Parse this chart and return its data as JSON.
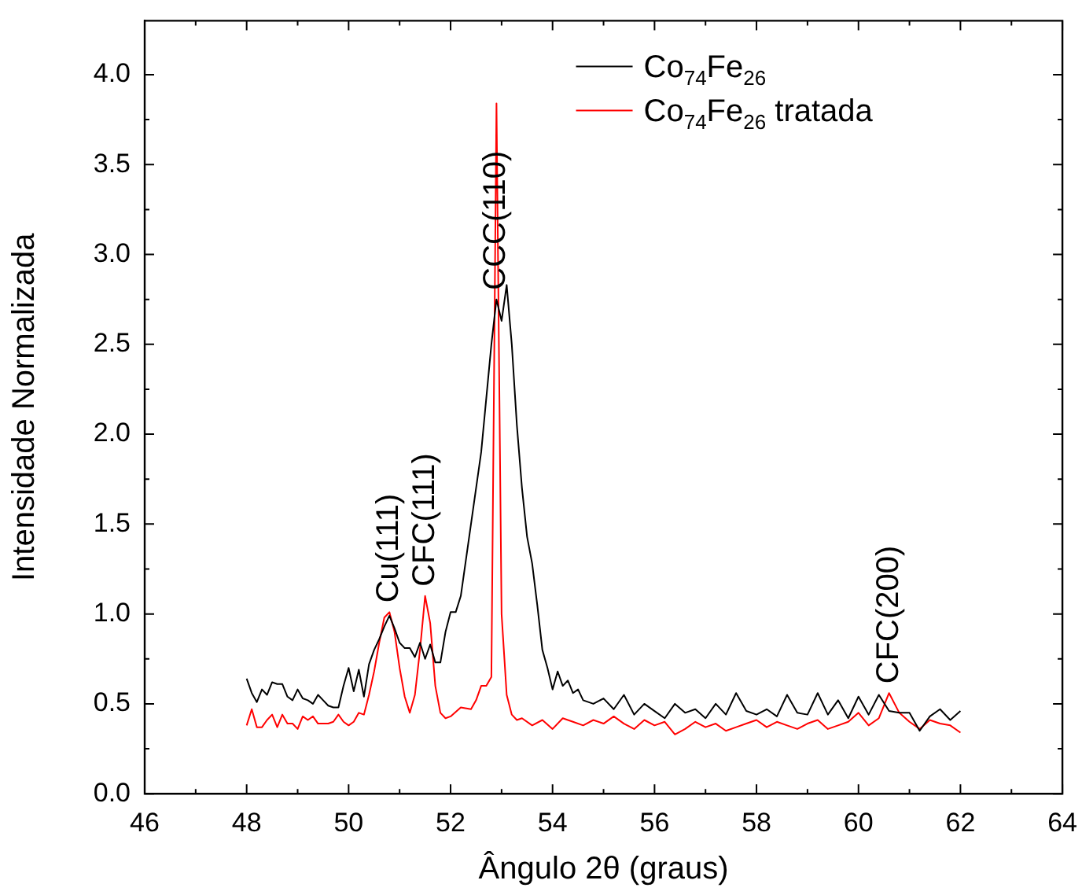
{
  "chart_data": {
    "type": "line",
    "xlabel": "Ângulo 2θ (graus)",
    "ylabel": "Intensidade Normalizada",
    "xlim": [
      46,
      64
    ],
    "xticks": [
      46,
      48,
      50,
      52,
      54,
      56,
      58,
      60,
      62,
      64
    ],
    "ylim": [
      0,
      4.3
    ],
    "yticks": [
      {
        "value": 0,
        "label": "0.0"
      },
      {
        "value": 0.5,
        "label": "0.5"
      },
      {
        "value": 1,
        "label": "1.0"
      },
      {
        "value": 1.5,
        "label": "1.5"
      },
      {
        "value": 2,
        "label": "2.0"
      },
      {
        "value": 2.5,
        "label": "2.5"
      },
      {
        "value": 3,
        "label": "3.0"
      },
      {
        "value": 3.5,
        "label": "3.5"
      },
      {
        "value": 4,
        "label": "4.0"
      }
    ],
    "grid": false,
    "legend": "top right",
    "marker": "none",
    "line_style": "solid",
    "series": [
      {
        "name": "Co$_{74}$Fe$_{26}$",
        "color": "#000000",
        "x": [
          48.0,
          48.1,
          48.2,
          48.3,
          48.4,
          48.5,
          48.6,
          48.7,
          48.8,
          48.9,
          49.0,
          49.1,
          49.2,
          49.3,
          49.4,
          49.5,
          49.6,
          49.7,
          49.8,
          49.9,
          50.0,
          50.1,
          50.2,
          50.3,
          50.4,
          50.5,
          50.6,
          50.7,
          50.8,
          50.9,
          51.0,
          51.1,
          51.2,
          51.3,
          51.4,
          51.5,
          51.6,
          51.7,
          51.8,
          51.9,
          52.0,
          52.1,
          52.2,
          52.3,
          52.4,
          52.5,
          52.6,
          52.7,
          52.8,
          52.9,
          53.0,
          53.1,
          53.2,
          53.3,
          53.4,
          53.5,
          53.6,
          53.7,
          53.8,
          53.9,
          54.0,
          54.1,
          54.2,
          54.3,
          54.4,
          54.5,
          54.6,
          54.8,
          55.0,
          55.2,
          55.4,
          55.6,
          55.8,
          56.0,
          56.2,
          56.4,
          56.6,
          56.8,
          57.0,
          57.2,
          57.4,
          57.6,
          57.8,
          58.0,
          58.2,
          58.4,
          58.6,
          58.8,
          59.0,
          59.2,
          59.4,
          59.6,
          59.8,
          60.0,
          60.2,
          60.4,
          60.6,
          60.8,
          61.0,
          61.2,
          61.4,
          61.6,
          61.8,
          62.0
        ],
        "values": [
          0.64,
          0.56,
          0.51,
          0.58,
          0.55,
          0.62,
          0.61,
          0.61,
          0.54,
          0.52,
          0.58,
          0.53,
          0.52,
          0.5,
          0.55,
          0.52,
          0.49,
          0.48,
          0.48,
          0.6,
          0.7,
          0.57,
          0.69,
          0.54,
          0.72,
          0.8,
          0.86,
          0.93,
          0.99,
          0.92,
          0.84,
          0.81,
          0.81,
          0.76,
          0.84,
          0.75,
          0.83,
          0.73,
          0.73,
          0.9,
          1.01,
          1.01,
          1.1,
          1.3,
          1.5,
          1.7,
          1.9,
          2.2,
          2.5,
          2.75,
          2.63,
          2.83,
          2.5,
          2.05,
          1.7,
          1.43,
          1.28,
          1.05,
          0.8,
          0.7,
          0.58,
          0.68,
          0.6,
          0.63,
          0.56,
          0.58,
          0.52,
          0.5,
          0.53,
          0.47,
          0.55,
          0.44,
          0.5,
          0.46,
          0.42,
          0.5,
          0.45,
          0.47,
          0.42,
          0.5,
          0.44,
          0.56,
          0.46,
          0.44,
          0.47,
          0.43,
          0.55,
          0.45,
          0.44,
          0.56,
          0.44,
          0.52,
          0.42,
          0.54,
          0.44,
          0.55,
          0.46,
          0.45,
          0.45,
          0.35,
          0.43,
          0.47,
          0.41,
          0.46
        ]
      },
      {
        "name": "Co$_{74}$Fe$_{26}$ tratada",
        "color": "#ff0000",
        "x": [
          48.0,
          48.1,
          48.2,
          48.3,
          48.4,
          48.5,
          48.6,
          48.7,
          48.8,
          48.9,
          49.0,
          49.1,
          49.2,
          49.3,
          49.4,
          49.5,
          49.6,
          49.7,
          49.8,
          49.9,
          50.0,
          50.1,
          50.2,
          50.3,
          50.4,
          50.5,
          50.6,
          50.7,
          50.8,
          50.9,
          51.0,
          51.1,
          51.2,
          51.3,
          51.4,
          51.5,
          51.6,
          51.7,
          51.8,
          51.9,
          52.0,
          52.2,
          52.4,
          52.5,
          52.6,
          52.7,
          52.8,
          52.9,
          53.0,
          53.1,
          53.2,
          53.3,
          53.4,
          53.6,
          53.8,
          54.0,
          54.2,
          54.4,
          54.6,
          54.8,
          55.0,
          55.2,
          55.4,
          55.6,
          55.8,
          56.0,
          56.2,
          56.4,
          56.6,
          56.8,
          57.0,
          57.2,
          57.4,
          57.6,
          57.8,
          58.0,
          58.2,
          58.4,
          58.6,
          58.8,
          59.0,
          59.2,
          59.4,
          59.6,
          59.8,
          60.0,
          60.2,
          60.4,
          60.6,
          60.8,
          61.0,
          61.2,
          61.4,
          61.6,
          61.8,
          62.0
        ],
        "values": [
          0.38,
          0.47,
          0.37,
          0.37,
          0.41,
          0.44,
          0.37,
          0.44,
          0.39,
          0.39,
          0.36,
          0.43,
          0.41,
          0.43,
          0.39,
          0.39,
          0.39,
          0.4,
          0.44,
          0.4,
          0.38,
          0.4,
          0.45,
          0.44,
          0.55,
          0.68,
          0.84,
          0.98,
          1.01,
          0.9,
          0.7,
          0.54,
          0.45,
          0.55,
          0.8,
          1.1,
          0.95,
          0.6,
          0.45,
          0.42,
          0.43,
          0.48,
          0.47,
          0.52,
          0.6,
          0.6,
          0.65,
          3.84,
          1.0,
          0.55,
          0.44,
          0.41,
          0.42,
          0.38,
          0.41,
          0.36,
          0.42,
          0.4,
          0.38,
          0.41,
          0.39,
          0.43,
          0.39,
          0.36,
          0.41,
          0.38,
          0.4,
          0.33,
          0.36,
          0.4,
          0.37,
          0.39,
          0.35,
          0.37,
          0.39,
          0.41,
          0.37,
          0.4,
          0.38,
          0.36,
          0.39,
          0.41,
          0.36,
          0.38,
          0.4,
          0.45,
          0.38,
          0.42,
          0.56,
          0.45,
          0.4,
          0.36,
          0.41,
          0.39,
          0.38,
          0.34
        ]
      }
    ],
    "annotations": [
      {
        "text": "Cu(111)",
        "x": 50.8,
        "y": 1.01
      },
      {
        "text": "CFC(111)",
        "x": 51.5,
        "y": 1.1
      },
      {
        "text": "CCC(110)",
        "x": 52.9,
        "y": 2.75
      },
      {
        "text": "CFC(200)",
        "x": 60.6,
        "y": 0.56
      }
    ]
  }
}
